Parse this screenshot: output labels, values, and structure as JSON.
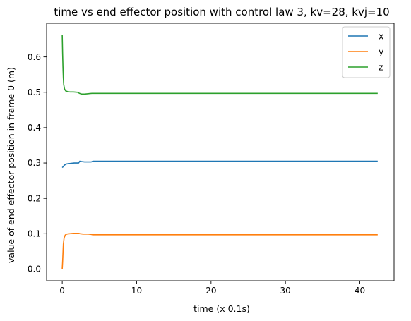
{
  "chart_data": {
    "type": "line",
    "title": "time vs end effector position with control law 3, kv=28, kvj=10",
    "xlabel": "time (x 0.1s)",
    "ylabel": "value of end effector position in frame 0 (m)",
    "xlim": [
      -2.1,
      44.6
    ],
    "ylim": [
      -0.033,
      0.695
    ],
    "xticks": [
      0,
      10,
      20,
      30,
      40
    ],
    "yticks": [
      0.0,
      0.1,
      0.2,
      0.3,
      0.4,
      0.5,
      0.6
    ],
    "xtick_labels": [
      "0",
      "10",
      "20",
      "30",
      "40"
    ],
    "ytick_labels": [
      "0.0",
      "0.1",
      "0.2",
      "0.3",
      "0.4",
      "0.5",
      "0.6"
    ],
    "grid": false,
    "legend": {
      "position": "top-right"
    },
    "series": [
      {
        "name": "x",
        "color": "#1f77b4",
        "points": [
          [
            0.0,
            0.287
          ],
          [
            0.1,
            0.289
          ],
          [
            0.3,
            0.294
          ],
          [
            0.5,
            0.297
          ],
          [
            0.8,
            0.298
          ],
          [
            1.2,
            0.299
          ],
          [
            1.6,
            0.3
          ],
          [
            2.0,
            0.3
          ],
          [
            2.2,
            0.3
          ],
          [
            2.35,
            0.305
          ],
          [
            2.6,
            0.304
          ],
          [
            3.0,
            0.303
          ],
          [
            3.5,
            0.303
          ],
          [
            3.9,
            0.303
          ],
          [
            4.1,
            0.305
          ],
          [
            6.0,
            0.305
          ],
          [
            10.0,
            0.305
          ],
          [
            20.0,
            0.305
          ],
          [
            30.0,
            0.305
          ],
          [
            42.4,
            0.305
          ]
        ]
      },
      {
        "name": "y",
        "color": "#ff7f0e",
        "points": [
          [
            0.0,
            0.0
          ],
          [
            0.05,
            0.02
          ],
          [
            0.1,
            0.045
          ],
          [
            0.15,
            0.07
          ],
          [
            0.25,
            0.088
          ],
          [
            0.4,
            0.096
          ],
          [
            0.6,
            0.099
          ],
          [
            1.0,
            0.1
          ],
          [
            1.5,
            0.101
          ],
          [
            2.2,
            0.101
          ],
          [
            2.4,
            0.1
          ],
          [
            2.8,
            0.099
          ],
          [
            3.5,
            0.099
          ],
          [
            3.9,
            0.098
          ],
          [
            4.1,
            0.097
          ],
          [
            6.0,
            0.097
          ],
          [
            10.0,
            0.097
          ],
          [
            20.0,
            0.097
          ],
          [
            30.0,
            0.097
          ],
          [
            42.4,
            0.097
          ]
        ]
      },
      {
        "name": "z",
        "color": "#2ca02c",
        "points": [
          [
            0.0,
            0.663
          ],
          [
            0.05,
            0.61
          ],
          [
            0.1,
            0.57
          ],
          [
            0.15,
            0.54
          ],
          [
            0.2,
            0.522
          ],
          [
            0.3,
            0.51
          ],
          [
            0.45,
            0.504
          ],
          [
            0.7,
            0.502
          ],
          [
            1.0,
            0.501
          ],
          [
            1.5,
            0.501
          ],
          [
            2.1,
            0.5
          ],
          [
            2.3,
            0.497
          ],
          [
            2.6,
            0.495
          ],
          [
            3.0,
            0.495
          ],
          [
            3.5,
            0.496
          ],
          [
            4.0,
            0.497
          ],
          [
            6.0,
            0.497
          ],
          [
            10.0,
            0.497
          ],
          [
            20.0,
            0.497
          ],
          [
            30.0,
            0.497
          ],
          [
            42.4,
            0.497
          ]
        ]
      }
    ]
  }
}
